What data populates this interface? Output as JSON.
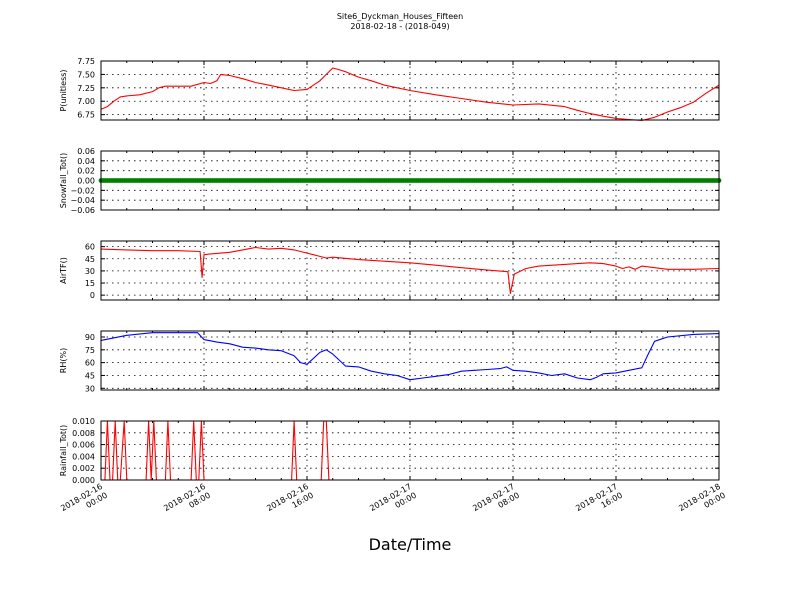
{
  "figure": {
    "title_line1": "Site6_Dyckman_Houses_Fifteen",
    "title_line2": "2018-02-18 - (2018-049)",
    "xlabel": "Date/Time"
  },
  "chart_data": [
    {
      "type": "line",
      "ylabel": "P(unitless)",
      "ylim": [
        6.65,
        7.75
      ],
      "yticks": [
        "7.75",
        "7.50",
        "7.25",
        "7.00",
        "6.75"
      ],
      "ytick_values": [
        7.75,
        7.5,
        7.25,
        7.0,
        6.75
      ],
      "xlim": [
        0,
        48
      ],
      "grid": true,
      "series": [
        {
          "color": "#ff0000",
          "x": [
            0,
            0.5,
            1,
            1.5,
            2,
            3,
            4,
            4.5,
            5,
            6,
            7,
            8,
            8.5,
            9,
            9.3,
            10,
            11,
            12,
            13,
            14,
            15,
            16,
            17,
            17.5,
            18,
            18.3,
            19,
            20,
            21,
            22,
            23,
            24,
            26,
            28,
            30,
            32,
            34,
            36,
            37,
            38,
            39,
            40,
            41,
            42,
            43,
            44,
            45,
            46,
            47,
            48
          ],
          "y": [
            6.85,
            6.9,
            7.0,
            7.08,
            7.1,
            7.12,
            7.18,
            7.25,
            7.28,
            7.28,
            7.28,
            7.35,
            7.33,
            7.38,
            7.5,
            7.48,
            7.42,
            7.35,
            7.3,
            7.25,
            7.2,
            7.22,
            7.38,
            7.5,
            7.62,
            7.6,
            7.55,
            7.45,
            7.38,
            7.3,
            7.25,
            7.2,
            7.12,
            7.05,
            6.98,
            6.93,
            6.95,
            6.9,
            6.83,
            6.77,
            6.72,
            6.68,
            6.66,
            6.64,
            6.7,
            6.8,
            6.88,
            6.98,
            7.15,
            7.3
          ]
        }
      ]
    },
    {
      "type": "scatter",
      "ylabel": "Snowfall_Tot()",
      "ylim": [
        -0.06,
        0.06
      ],
      "yticks": [
        "0.06",
        "0.04",
        "0.02",
        "0.00",
        "−0.02",
        "−0.04",
        "−0.06"
      ],
      "ytick_values": [
        0.06,
        0.04,
        0.02,
        0.0,
        -0.02,
        -0.04,
        -0.06
      ],
      "xlim": [
        0,
        48
      ],
      "grid": true,
      "series": [
        {
          "color": "#007f00",
          "x": [
            0,
            1,
            2,
            3,
            4,
            5,
            6,
            7,
            8,
            9,
            10,
            11,
            12,
            13,
            14,
            15,
            16,
            17,
            18,
            19,
            20,
            21,
            22,
            23,
            24,
            25,
            26,
            27,
            28,
            29,
            30,
            31,
            32,
            33,
            34,
            35,
            36,
            37,
            38,
            39,
            40,
            41,
            42,
            43,
            44,
            45,
            46,
            47,
            48
          ],
          "y": [
            0,
            0,
            0,
            0,
            0,
            0,
            0,
            0,
            0,
            0,
            0,
            0,
            0,
            0,
            0,
            0,
            0,
            0,
            0,
            0,
            0,
            0,
            0,
            0,
            0,
            0,
            0,
            0,
            0,
            0,
            0,
            0,
            0,
            0,
            0,
            0,
            0,
            0,
            0,
            0,
            0,
            0,
            0,
            0,
            0,
            0,
            0,
            0,
            0
          ]
        }
      ]
    },
    {
      "type": "line",
      "ylabel": "AirTF()",
      "ylim": [
        -6,
        67
      ],
      "yticks": [
        "60",
        "45",
        "30",
        "15",
        "0"
      ],
      "ytick_values": [
        60,
        45,
        30,
        15,
        0
      ],
      "xlim": [
        0,
        48
      ],
      "grid": true,
      "series": [
        {
          "color": "#ff0000",
          "x": [
            0,
            2,
            4,
            6,
            7.7,
            7.85,
            8.0,
            8.5,
            10,
            11,
            12,
            13,
            14,
            15,
            16,
            16.5,
            17,
            17.5,
            18,
            20,
            22,
            24,
            26,
            28,
            30,
            31.6,
            31.8,
            32.1,
            33,
            34,
            36,
            37,
            38,
            39,
            40,
            40.5,
            41,
            41.5,
            42,
            43,
            44,
            46,
            48
          ],
          "y": [
            57,
            56,
            55,
            55,
            54,
            22,
            50,
            51,
            53,
            56,
            59,
            57,
            58,
            56,
            52,
            50,
            48,
            46,
            47,
            44,
            42,
            40,
            37,
            34,
            31,
            29,
            2,
            26,
            33,
            36,
            38,
            39,
            40,
            39,
            36,
            33,
            35,
            32,
            36,
            34,
            32,
            32,
            33
          ]
        }
      ]
    },
    {
      "type": "line",
      "ylabel": "RH(%)",
      "ylim": [
        28,
        97
      ],
      "yticks": [
        "90",
        "75",
        "60",
        "45",
        "30"
      ],
      "ytick_values": [
        90,
        75,
        60,
        45,
        30
      ],
      "xlim": [
        0,
        48
      ],
      "grid": true,
      "series": [
        {
          "color": "#0000ff",
          "x": [
            0,
            2,
            4,
            6,
            7.5,
            8,
            9,
            10,
            11,
            12,
            13,
            14,
            15,
            15.5,
            16,
            17,
            17.5,
            18,
            19,
            20,
            21,
            22,
            23,
            24,
            25,
            26,
            27,
            28,
            29,
            30,
            31,
            31.5,
            32,
            33,
            34,
            35,
            36,
            37,
            38,
            38.5,
            39,
            40,
            41,
            42,
            42.5,
            43,
            44,
            46,
            48
          ],
          "y": [
            86,
            92,
            95,
            95,
            95,
            87,
            84,
            82,
            78,
            77,
            75,
            74,
            68,
            60,
            58,
            72,
            75,
            70,
            56,
            55,
            50,
            47,
            45,
            40,
            42,
            44,
            46,
            50,
            51,
            52,
            53,
            55,
            51,
            50,
            48,
            45,
            47,
            42,
            40,
            43,
            47,
            48,
            51,
            54,
            70,
            85,
            90,
            93,
            94
          ]
        }
      ]
    },
    {
      "type": "line",
      "ylabel": "Rainfall_Tot()",
      "ylim": [
        0,
        0.01
      ],
      "yticks": [
        "0.010",
        "0.008",
        "0.006",
        "0.004",
        "0.002",
        "0.000"
      ],
      "ytick_values": [
        0.01,
        0.008,
        0.006,
        0.004,
        0.002,
        0.0
      ],
      "xlim": [
        0,
        48
      ],
      "grid": true,
      "series": [
        {
          "color": "#ff0000",
          "x": [
            0,
            0.3,
            0.5,
            0.7,
            0.9,
            1.1,
            1.3,
            1.5,
            1.8,
            2.0,
            2.3,
            3.5,
            3.7,
            3.9,
            4.1,
            4.3,
            4.5,
            5.0,
            5.2,
            5.4,
            7.0,
            7.2,
            7.4,
            7.6,
            7.8,
            8.0,
            14.8,
            15.0,
            15.2,
            17.1,
            17.3,
            17.5,
            17.7,
            48
          ],
          "y": [
            0,
            0,
            0.01,
            0,
            0,
            0.01,
            0,
            0,
            0.01,
            0,
            0,
            0,
            0.01,
            0,
            0.01,
            0,
            0,
            0,
            0.01,
            0,
            0,
            0.01,
            0,
            0,
            0.01,
            0,
            0,
            0.01,
            0,
            0,
            0.01,
            0.01,
            0,
            0
          ]
        }
      ]
    }
  ],
  "x_axis": {
    "ticks": [
      {
        "value": 0,
        "line1": "2018-02-16",
        "line2": "00:00"
      },
      {
        "value": 8,
        "line1": "2018-02-16",
        "line2": "08:00"
      },
      {
        "value": 16,
        "line1": "2018-02-16",
        "line2": "16:00"
      },
      {
        "value": 24,
        "line1": "2018-02-17",
        "line2": "00:00"
      },
      {
        "value": 32,
        "line1": "2018-02-17",
        "line2": "08:00"
      },
      {
        "value": 40,
        "line1": "2018-02-17",
        "line2": "16:00"
      },
      {
        "value": 48,
        "line1": "2018-02-18",
        "line2": "00:00"
      }
    ]
  }
}
